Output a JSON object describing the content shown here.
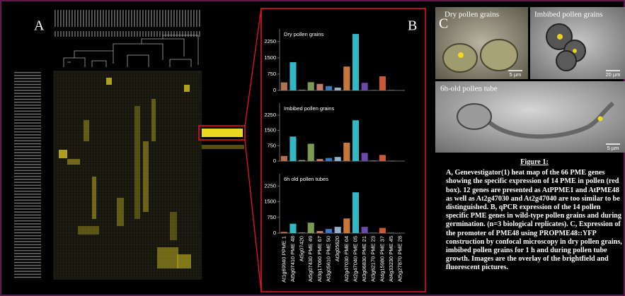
{
  "panel_labels": {
    "a": "A",
    "b": "B",
    "c": "C"
  },
  "chart_data": [
    {
      "type": "bar",
      "title": "Dry pollen grains",
      "values": [
        370,
        1300,
        30,
        380,
        300,
        200,
        130,
        1100,
        2600,
        350,
        20,
        650,
        20,
        15
      ],
      "colors": [
        "#b5714f",
        "#34b7c4",
        "#8a9a6a",
        "#7d9a55",
        "#c87a6a",
        "#3a78c4",
        "#8fb0c8",
        "#c8783a",
        "#34b7c4",
        "#6a4aa8",
        "#5a8a9a",
        "#c85a3a",
        "#8a8a8a",
        "#4a7a9a"
      ],
      "ylim": [
        0,
        2700
      ],
      "yticks": [
        0,
        750,
        1500,
        2250
      ]
    },
    {
      "type": "bar",
      "title": "Imbibed pollen grains",
      "values": [
        250,
        1200,
        50,
        850,
        100,
        150,
        200,
        900,
        2000,
        400,
        30,
        300,
        20,
        10
      ],
      "colors": [
        "#b5714f",
        "#34b7c4",
        "#8a9a6a",
        "#7d9a55",
        "#c87a6a",
        "#3a78c4",
        "#8fb0c8",
        "#c8783a",
        "#34b7c4",
        "#6a4aa8",
        "#5a8a9a",
        "#c85a3a",
        "#8a8a8a",
        "#4a7a9a"
      ],
      "ylim": [
        0,
        2700
      ],
      "yticks": [
        0,
        750,
        1500,
        2250
      ]
    },
    {
      "type": "bar",
      "title": "6h old pollen tubes",
      "categories": [
        "At1g69940 PPME 1",
        "At5g07410 PME 48",
        "At5g07420",
        "At5g07430 PME 49",
        "At3g17060 PME 67",
        "At3g05610 PME 50",
        "At3g05620",
        "At2g47030 PME 04",
        "At2g47040 PME 05",
        "At3g06830 PME 21",
        "At3g62170 PME 23",
        "At4g15980 PME 37",
        "At4g33230 PME 45",
        "At5g27870 PME 28"
      ],
      "values": [
        60,
        450,
        30,
        500,
        100,
        200,
        300,
        700,
        1950,
        300,
        20,
        250,
        20,
        10
      ],
      "colors": [
        "#b5714f",
        "#34b7c4",
        "#8a9a6a",
        "#7d9a55",
        "#c87a6a",
        "#3a78c4",
        "#8fb0c8",
        "#c8783a",
        "#34b7c4",
        "#6a4aa8",
        "#5a8a9a",
        "#c85a3a",
        "#8a8a8a",
        "#4a7a9a"
      ],
      "ylim": [
        0,
        2700
      ],
      "yticks": [
        0,
        750,
        1500,
        2250
      ]
    }
  ],
  "micrographs": {
    "dry": "Dry pollen grains",
    "imbibed": "Imbibed pollen grains",
    "tube": "6h-old pollen tube",
    "scale_dry": "5 µm",
    "scale_imbibed": "20 µm",
    "scale_tube": "5 µm"
  },
  "caption": {
    "title": "Figure 1:",
    "text": "A, Genevestigator(1) heat map of the 66 PME genes showing the specific expression of 14 PME in pollen (red box). 12 genes are presented as AtPPME1 and AtPME48 as well as At2g47030 and At2g47040 are too similar to be distinguished. B, qPCR expression of the 14 pollen specific PME genes in wild-type pollen grains and during germination. (n=3 biological replicates). C, Expression of the promoter of PME48 using PROPME48::YFP construction by confocal microscopy in dry pollen grains, imbibed pollen grains for 1 h and during pollen tube growth. Images are the overlay of the brightfield and fluorescent pictures."
  }
}
